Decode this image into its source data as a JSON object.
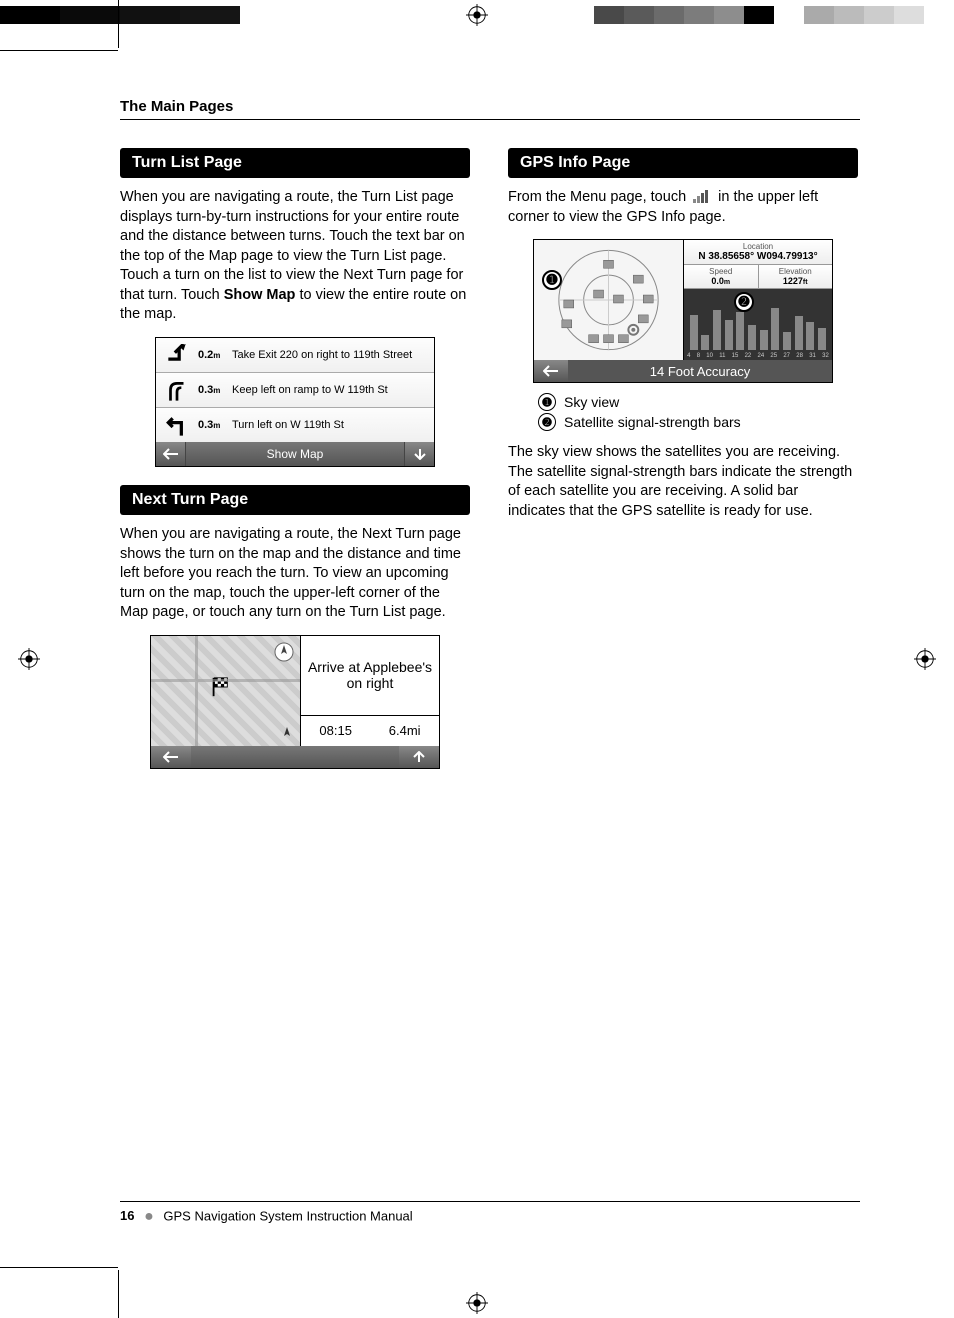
{
  "header": {
    "title": "The Main Pages"
  },
  "turnlist": {
    "heading": "Turn List Page",
    "para_before": "When you are navigating a route, the Turn List page displays turn-by-turn instructions for your entire route and the distance between turns. Touch the text bar on the top of the Map page to view the Turn List page. Touch a turn on the list to view the Next Turn page for that turn. Touch ",
    "para_bold": "Show Map",
    "para_after": " to view the entire route on the map.",
    "rows": [
      {
        "dist": "0.2",
        "unit": "m",
        "text": "Take Exit 220 on right to 119th Street"
      },
      {
        "dist": "0.3",
        "unit": "m",
        "text": "Keep left on ramp to W 119th St"
      },
      {
        "dist": "0.3",
        "unit": "m",
        "text": "Turn left on W 119th St"
      }
    ],
    "footer_label": "Show Map"
  },
  "nextturn": {
    "heading": "Next Turn Page",
    "para": "When you are navigating a route, the Next Turn page shows the turn on the map and the distance and time left before you reach the turn. To view an upcoming turn on the map, touch the upper-left corner of the Map page, or touch any turn on the Turn List page.",
    "dest": "Arrive at Applebee's on right",
    "time": "08:15",
    "dist": "6.4mi"
  },
  "gps": {
    "heading": "GPS Info Page",
    "intro_before": "From the Menu page, touch ",
    "intro_after": " in the upper left corner to view the GPS Info page.",
    "location_label": "Location",
    "location_value": "N 38.85658° W094.79913°",
    "speed_label": "Speed",
    "speed_value": "0.0",
    "elev_label": "Elevation",
    "elev_value": "1227",
    "accuracy": "14 Foot Accuracy",
    "legend1": "Sky view",
    "legend2": "Satellite signal-strength bars",
    "para": "The sky view shows the satellites you are receiving. The satellite signal-strength bars indicate the strength of each satellite you are receiving. A solid bar indicates that the GPS satellite is ready for use.",
    "bars": [
      35,
      15,
      40,
      30,
      38,
      25,
      20,
      42,
      18,
      34,
      28,
      22
    ],
    "bar_labels": [
      "4",
      "8",
      "10",
      "11",
      "15",
      "22",
      "24",
      "25",
      "27",
      "28",
      "31",
      "32"
    ]
  },
  "footer": {
    "page": "16",
    "title": "GPS Navigation System Instruction Manual"
  },
  "colors": {
    "bar_black": "#000000",
    "reg_grays": [
      "#000000",
      "#111111",
      "#ffffff",
      "#ffffff",
      "#444444",
      "#666666",
      "#777777",
      "#888888",
      "#000000",
      "#ffffff",
      "#aaaaaa",
      "#bbbbbb",
      "#cccccc",
      "#ffffff"
    ]
  }
}
